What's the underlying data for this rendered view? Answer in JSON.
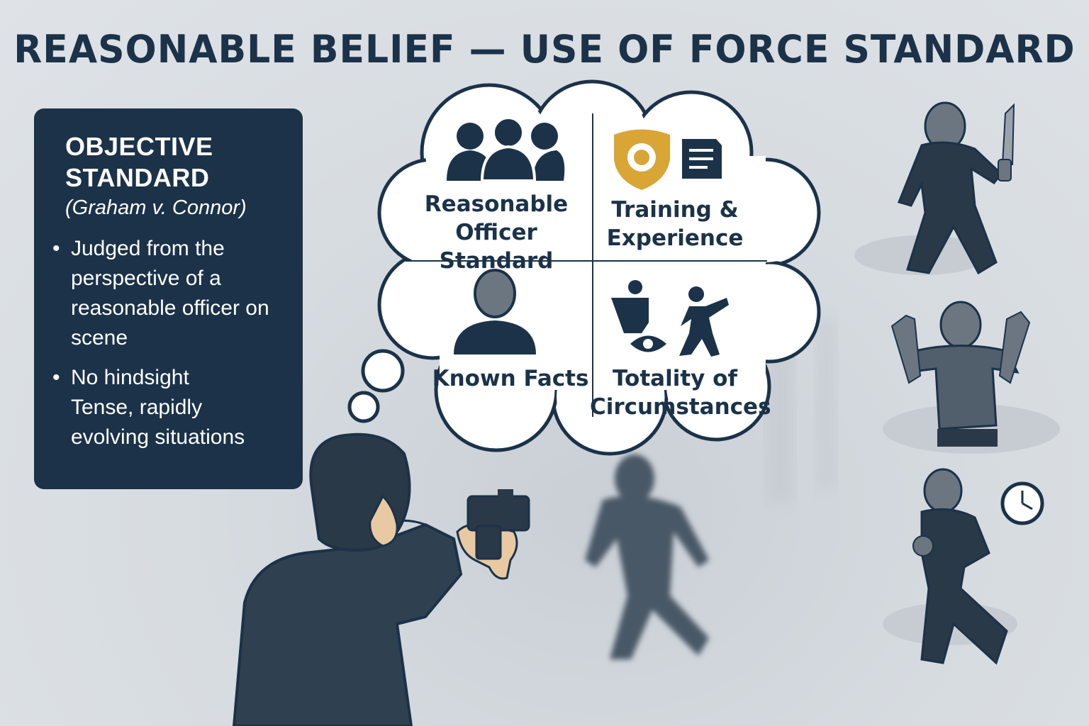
{
  "title": "REASONABLE BELIEF — USE OF FORCE STANDARD",
  "panel": {
    "heading_line1": "OBJECTIVE",
    "heading_line2": "STANDARD",
    "case": "(Graham v. Connor)",
    "bullet1": "Judged from the perspective of a reasonable officer on scene",
    "bullet2": "No hindsight",
    "bullet2_cont": "Tense, rapidly evolving situations",
    "bullet_symbol": "•"
  },
  "thought_cloud": {
    "cells": [
      {
        "line1": "Reasonable",
        "line2": "Officer Standard",
        "icon": "group-icon"
      },
      {
        "line1": "Training &",
        "line2": "Experience",
        "icon": "badge-document-icon"
      },
      {
        "line1": "Known Facts",
        "line2": "",
        "icon": "person-icon"
      },
      {
        "line1": "Totality of",
        "line2": "Circumstances",
        "icon": "eye-runner-icon"
      }
    ]
  },
  "colors": {
    "navy": "#1b3249",
    "gold": "#d9a636",
    "slate": "#3e4f60",
    "background": "#dfe3e7"
  },
  "side_figures": [
    "person-with-knife",
    "person-hands-raised",
    "person-agitated-clock"
  ]
}
